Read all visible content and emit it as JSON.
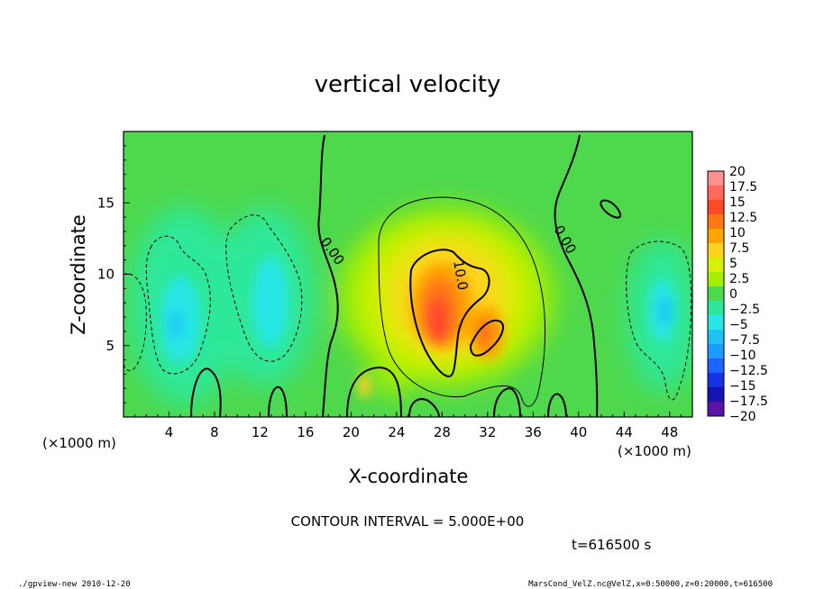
{
  "chart_data": {
    "type": "heatmap",
    "title": "vertical velocity",
    "xlabel": "X-coordinate",
    "ylabel": "Z-coordinate",
    "x_unit_left": "(×1000 m)",
    "x_unit_right": "(×1000 m)",
    "x_ticks": [
      "4",
      "8",
      "12",
      "16",
      "20",
      "24",
      "28",
      "32",
      "36",
      "40",
      "44",
      "48"
    ],
    "y_ticks": [
      "5",
      "10",
      "15"
    ],
    "xlim": [
      0,
      50
    ],
    "ylim": [
      0,
      20
    ],
    "contour_interval_text": "CONTOUR INTERVAL = 5.000E+00",
    "contour_labels": [
      "0.00",
      "0.00",
      "10.0"
    ],
    "time_text": "t=616500 s",
    "colorbar": {
      "labels": [
        "20",
        "17.5",
        "15",
        "12.5",
        "10",
        "7.5",
        "5",
        "2.5",
        "0",
        "−2.5",
        "−5",
        "−7.5",
        "−10",
        "−12.5",
        "−15",
        "−17.5",
        "−20"
      ],
      "colors": [
        "#ff9090",
        "#ff6a5a",
        "#ff4a2a",
        "#ff7814",
        "#ffa500",
        "#ffd21e",
        "#d7f000",
        "#a5f000",
        "#4ed84c",
        "#2de89a",
        "#28e6e6",
        "#1ec3f5",
        "#1e9bff",
        "#1e64ff",
        "#1434e6",
        "#1414b4",
        "#5a14aa"
      ]
    },
    "values": [
      {
        "x": 28.5,
        "z": 7.0,
        "w": 20
      },
      {
        "x": 28.0,
        "z": 9.5,
        "w": 13
      },
      {
        "x": 32.0,
        "z": 5.5,
        "w": 12
      },
      {
        "x": 29.5,
        "z": 9.0,
        "w": 8
      },
      {
        "x": 21.2,
        "z": 2.0,
        "w": 8
      },
      {
        "x": 28.5,
        "z": 9.0,
        "w": 4
      },
      {
        "x": 48.0,
        "z": 8.0,
        "w": -8
      },
      {
        "x": 5.0,
        "z": 7.0,
        "w": -6
      },
      {
        "x": 13.0,
        "z": 8.0,
        "w": -4
      },
      {
        "x": 2.5,
        "z": 5.0,
        "w": -4
      }
    ]
  },
  "footer": {
    "left": "./gpview-new   2010-12-20",
    "right": "MarsCond_VelZ.nc@VelZ,x=0:50000,z=0:20000,t=616500"
  }
}
